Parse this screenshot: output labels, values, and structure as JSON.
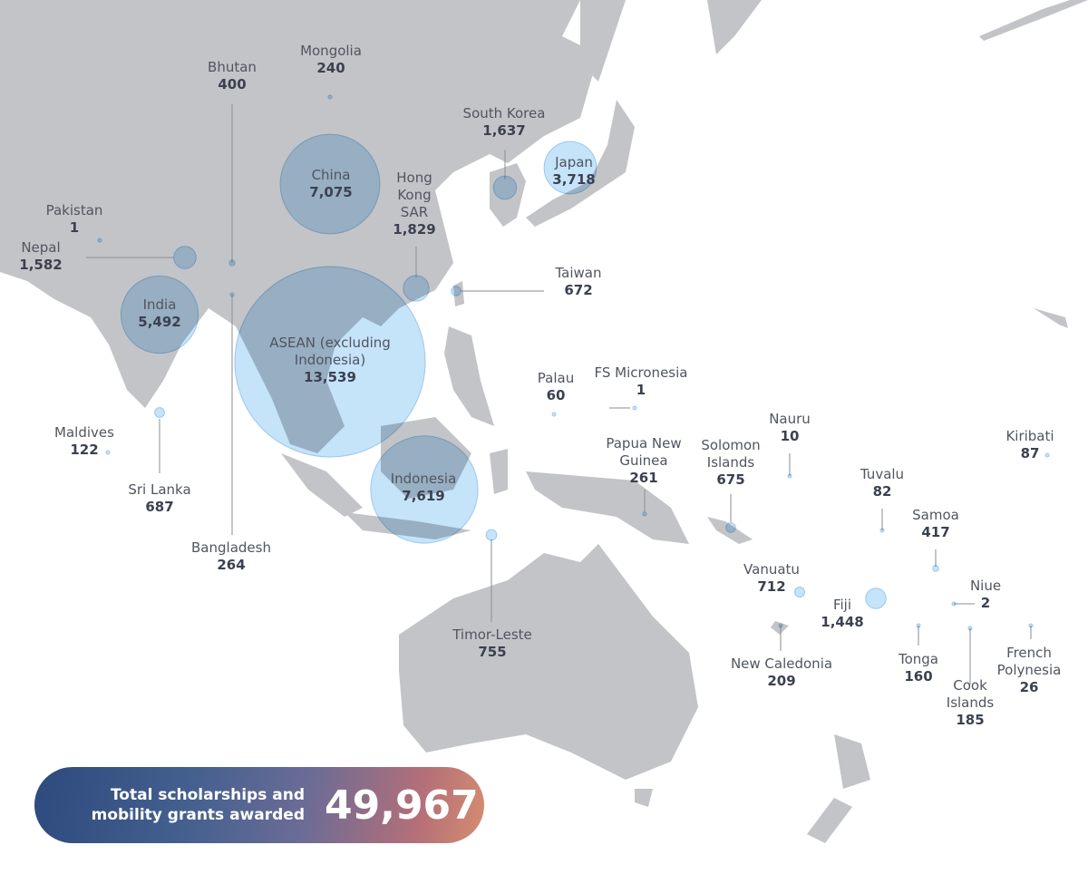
{
  "regions": [
    {
      "name": "Mongolia",
      "value": 240,
      "value_label": "240"
    },
    {
      "name": "Bhutan",
      "value": 400,
      "value_label": "400"
    },
    {
      "name": "China",
      "value": 7075,
      "value_label": "7,075"
    },
    {
      "name": "South Korea",
      "value": 1637,
      "value_label": "1,637"
    },
    {
      "name": "Japan",
      "value": 3718,
      "value_label": "3,718"
    },
    {
      "name": "Hong Kong SAR",
      "value": 1829,
      "value_label": "1,829"
    },
    {
      "name": "Pakistan",
      "value": 1,
      "value_label": "1"
    },
    {
      "name": "Nepal",
      "value": 1582,
      "value_label": "1,582"
    },
    {
      "name": "India",
      "value": 5492,
      "value_label": "5,492"
    },
    {
      "name": "Taiwan",
      "value": 672,
      "value_label": "672"
    },
    {
      "name": "ASEAN (excluding Indonesia)",
      "value": 13539,
      "value_label": "13,539"
    },
    {
      "name": "Maldives",
      "value": 122,
      "value_label": "122"
    },
    {
      "name": "Sri Lanka",
      "value": 687,
      "value_label": "687"
    },
    {
      "name": "Bangladesh",
      "value": 264,
      "value_label": "264"
    },
    {
      "name": "Indonesia",
      "value": 7619,
      "value_label": "7,619"
    },
    {
      "name": "Timor-Leste",
      "value": 755,
      "value_label": "755"
    },
    {
      "name": "Palau",
      "value": 60,
      "value_label": "60"
    },
    {
      "name": "FS Micronesia",
      "value": 1,
      "value_label": "1"
    },
    {
      "name": "Papua New Guinea",
      "value": 261,
      "value_label": "261"
    },
    {
      "name": "Solomon Islands",
      "value": 675,
      "value_label": "675"
    },
    {
      "name": "Nauru",
      "value": 10,
      "value_label": "10"
    },
    {
      "name": "Kiribati",
      "value": 87,
      "value_label": "87"
    },
    {
      "name": "Tuvalu",
      "value": 82,
      "value_label": "82"
    },
    {
      "name": "Samoa",
      "value": 417,
      "value_label": "417"
    },
    {
      "name": "Vanuatu",
      "value": 712,
      "value_label": "712"
    },
    {
      "name": "Niue",
      "value": 2,
      "value_label": "2"
    },
    {
      "name": "Fiji",
      "value": 1448,
      "value_label": "1,448"
    },
    {
      "name": "New Caledonia",
      "value": 209,
      "value_label": "209"
    },
    {
      "name": "Tonga",
      "value": 160,
      "value_label": "160"
    },
    {
      "name": "Cook Islands",
      "value": 185,
      "value_label": "185"
    },
    {
      "name": "French Polynesia",
      "value": 26,
      "value_label": "26"
    }
  ],
  "total": {
    "text": "Total scholarships and mobility grants awarded",
    "value_label": "49,967"
  }
}
